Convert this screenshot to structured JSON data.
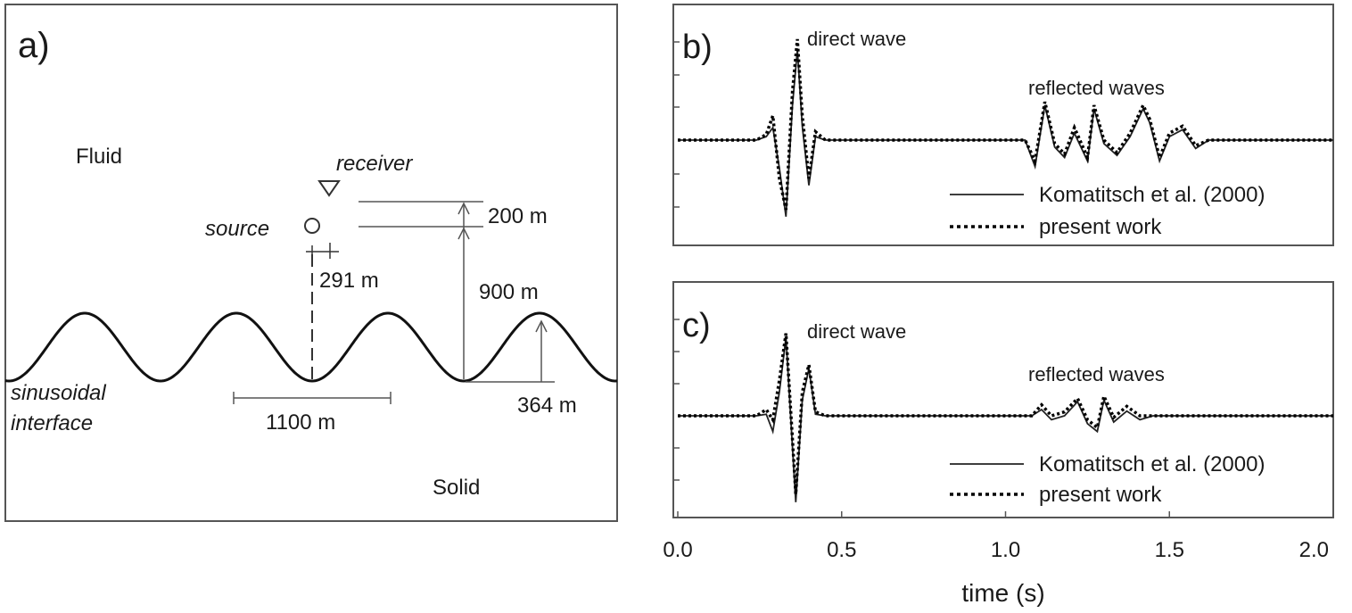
{
  "panel_a": {
    "label": "a)",
    "fluid_label": "Fluid",
    "solid_label": "Solid",
    "receiver_label": "receiver",
    "source_label": "source",
    "interface_line1": "sinusoidal",
    "interface_line2": "interface",
    "dim_200": "200 m",
    "dim_291": "291 m",
    "dim_900": "900 m",
    "dim_364": "364 m",
    "dim_1100": "1100 m"
  },
  "panel_b": {
    "label": "b)",
    "direct_wave": "direct wave",
    "reflected_waves": "reflected waves",
    "legend_solid": "Komatitsch et al. (2000)",
    "legend_dotted": "present work"
  },
  "panel_c": {
    "label": "c)",
    "direct_wave": "direct wave",
    "reflected_waves": "reflected waves",
    "legend_solid": "Komatitsch et al. (2000)",
    "legend_dotted": "present work"
  },
  "x_axis": {
    "label": "time (s)",
    "ticks": [
      "0.0",
      "0.5",
      "1.0",
      "1.5",
      "2.0"
    ]
  },
  "chart_data": [
    {
      "type": "line",
      "panel": "b)",
      "xlabel": "time (s)",
      "xlim": [
        0.0,
        2.0
      ],
      "series": [
        {
          "name": "Komatitsch et al. (2000)",
          "style": "solid",
          "x": [
            0.0,
            0.24,
            0.27,
            0.29,
            0.31,
            0.33,
            0.35,
            0.365,
            0.38,
            0.4,
            0.42,
            0.45,
            0.5,
            1.0,
            1.06,
            1.09,
            1.12,
            1.15,
            1.18,
            1.21,
            1.25,
            1.27,
            1.3,
            1.34,
            1.38,
            1.42,
            1.44,
            1.47,
            1.5,
            1.54,
            1.58,
            1.62,
            2.0
          ],
          "y": [
            0.0,
            0.0,
            0.05,
            0.18,
            -0.4,
            -1.1,
            0.5,
            1.3,
            0.2,
            -0.65,
            0.05,
            0.0,
            0.0,
            0.0,
            0.0,
            -0.38,
            0.5,
            -0.1,
            -0.25,
            0.1,
            -0.3,
            0.45,
            -0.05,
            -0.22,
            0.05,
            0.45,
            0.25,
            -0.3,
            0.05,
            0.15,
            -0.12,
            0.0,
            0.0
          ]
        },
        {
          "name": "present work",
          "style": "dotted",
          "x": [
            0.0,
            0.24,
            0.27,
            0.29,
            0.31,
            0.33,
            0.35,
            0.365,
            0.38,
            0.4,
            0.42,
            0.45,
            0.5,
            1.0,
            1.06,
            1.09,
            1.12,
            1.15,
            1.18,
            1.21,
            1.25,
            1.27,
            1.3,
            1.34,
            1.38,
            1.42,
            1.44,
            1.47,
            1.5,
            1.54,
            1.58,
            1.62,
            2.0
          ],
          "y": [
            0.0,
            0.0,
            0.08,
            0.35,
            -0.55,
            -1.0,
            0.7,
            1.45,
            0.35,
            -0.55,
            0.12,
            0.0,
            0.0,
            0.0,
            0.0,
            -0.3,
            0.55,
            -0.05,
            -0.2,
            0.18,
            -0.25,
            0.5,
            0.0,
            -0.18,
            0.1,
            0.5,
            0.3,
            -0.25,
            0.1,
            0.2,
            -0.08,
            0.0,
            0.0
          ]
        }
      ]
    },
    {
      "type": "line",
      "panel": "c)",
      "xlabel": "time (s)",
      "xlim": [
        0.0,
        2.0
      ],
      "series": [
        {
          "name": "Komatitsch et al. (2000)",
          "style": "solid",
          "x": [
            0.0,
            0.24,
            0.27,
            0.29,
            0.31,
            0.33,
            0.35,
            0.36,
            0.38,
            0.4,
            0.42,
            0.45,
            0.5,
            1.0,
            1.08,
            1.11,
            1.14,
            1.18,
            1.22,
            1.25,
            1.28,
            1.3,
            1.33,
            1.37,
            1.41,
            1.45,
            2.0
          ],
          "y": [
            0.0,
            0.0,
            0.02,
            -0.2,
            0.3,
            1.0,
            -0.4,
            -1.1,
            0.2,
            0.6,
            0.02,
            0.0,
            0.0,
            0.0,
            0.0,
            0.08,
            -0.05,
            0.0,
            0.18,
            -0.1,
            -0.2,
            0.2,
            -0.08,
            0.06,
            -0.05,
            0.0,
            0.0
          ]
        },
        {
          "name": "present work",
          "style": "dotted",
          "x": [
            0.0,
            0.24,
            0.27,
            0.29,
            0.31,
            0.33,
            0.35,
            0.36,
            0.38,
            0.4,
            0.42,
            0.45,
            0.5,
            1.0,
            1.08,
            1.11,
            1.14,
            1.18,
            1.22,
            1.25,
            1.28,
            1.3,
            1.33,
            1.37,
            1.41,
            1.45,
            2.0
          ],
          "y": [
            0.0,
            0.0,
            0.08,
            -0.05,
            0.45,
            1.05,
            -0.3,
            -1.0,
            0.3,
            0.65,
            0.05,
            0.0,
            0.0,
            0.0,
            0.0,
            0.14,
            0.0,
            0.05,
            0.22,
            -0.05,
            -0.15,
            0.25,
            -0.02,
            0.12,
            0.0,
            0.0,
            0.0
          ]
        }
      ]
    }
  ]
}
